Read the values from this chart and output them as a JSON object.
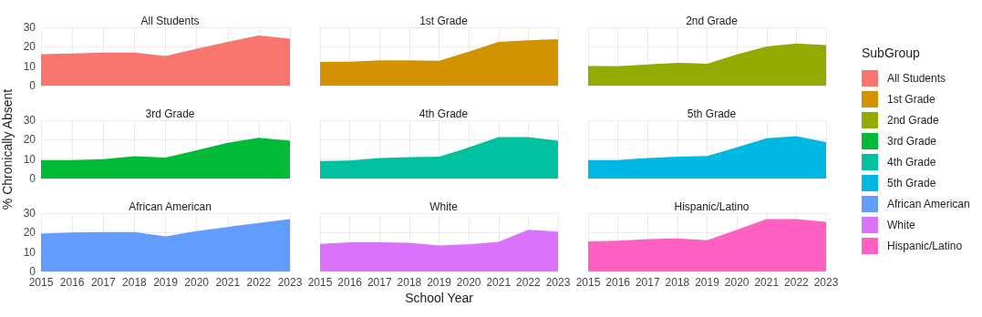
{
  "chart_data": [
    {
      "type": "area",
      "title": "All Students",
      "categories": [
        "2015",
        "2016",
        "2017",
        "2018",
        "2019",
        "2020",
        "2021",
        "2022",
        "2023"
      ],
      "ylim": [
        0,
        30
      ],
      "yticks": [
        0,
        10,
        20,
        30
      ],
      "grid": true,
      "tick_labels": "y",
      "legend": "right",
      "legend_title": "SubGroup",
      "series": [
        {
          "name": "All Students",
          "color": "#f8766d",
          "values": [
            16.2,
            16.5,
            17,
            17,
            15.2,
            19,
            22.5,
            25.8,
            24.1
          ]
        }
      ]
    },
    {
      "type": "area",
      "title": "1st Grade",
      "categories": [
        "2015",
        "2016",
        "2017",
        "2018",
        "2019",
        "2020",
        "2021",
        "2022",
        "2023"
      ],
      "ylim": [
        0,
        30
      ],
      "yticks": [
        0,
        10,
        20,
        30
      ],
      "grid": true,
      "tick_labels": false,
      "series": [
        {
          "name": "1st Grade",
          "color": "#d39200",
          "values": [
            12.2,
            12.3,
            13,
            13,
            12.8,
            17.5,
            22.5,
            23.3,
            23.9
          ]
        }
      ]
    },
    {
      "type": "area",
      "title": "2nd Grade",
      "categories": [
        "2015",
        "2016",
        "2017",
        "2018",
        "2019",
        "2020",
        "2021",
        "2022",
        "2023"
      ],
      "ylim": [
        0,
        30
      ],
      "yticks": [
        0,
        10,
        20,
        30
      ],
      "grid": true,
      "tick_labels": false,
      "series": [
        {
          "name": "2nd Grade",
          "color": "#93aa00",
          "values": [
            10.1,
            10,
            10.9,
            11.7,
            11.3,
            16,
            20.2,
            21.7,
            20.9
          ]
        }
      ]
    },
    {
      "type": "area",
      "title": "3rd Grade",
      "ylabel": "% Chronically Absent",
      "categories": [
        "2015",
        "2016",
        "2017",
        "2018",
        "2019",
        "2020",
        "2021",
        "2022",
        "2023"
      ],
      "ylim": [
        0,
        30
      ],
      "yticks": [
        0,
        10,
        20,
        30
      ],
      "grid": true,
      "tick_labels": "y",
      "series": [
        {
          "name": "3rd Grade",
          "color": "#00ba38",
          "values": [
            9.5,
            9.5,
            10,
            11.5,
            10.8,
            14.5,
            18.4,
            21,
            19.4
          ]
        }
      ]
    },
    {
      "type": "area",
      "title": "4th Grade",
      "categories": [
        "2015",
        "2016",
        "2017",
        "2018",
        "2019",
        "2020",
        "2021",
        "2022",
        "2023"
      ],
      "ylim": [
        0,
        30
      ],
      "yticks": [
        0,
        10,
        20,
        30
      ],
      "grid": true,
      "tick_labels": false,
      "series": [
        {
          "name": "4th Grade",
          "color": "#00c19f",
          "values": [
            9,
            9.3,
            10.6,
            11,
            11.3,
            16,
            21.3,
            21.3,
            19.4
          ]
        }
      ]
    },
    {
      "type": "area",
      "title": "5th Grade",
      "categories": [
        "2015",
        "2016",
        "2017",
        "2018",
        "2019",
        "2020",
        "2021",
        "2022",
        "2023"
      ],
      "ylim": [
        0,
        30
      ],
      "yticks": [
        0,
        10,
        20,
        30
      ],
      "grid": true,
      "tick_labels": false,
      "series": [
        {
          "name": "5th Grade",
          "color": "#00b9e3",
          "values": [
            9.5,
            9.5,
            10.5,
            11.3,
            11.6,
            16,
            20.8,
            21.8,
            18.7
          ]
        }
      ]
    },
    {
      "type": "area",
      "title": "African American",
      "categories": [
        "2015",
        "2016",
        "2017",
        "2018",
        "2019",
        "2020",
        "2021",
        "2022",
        "2023"
      ],
      "ylim": [
        0,
        30
      ],
      "yticks": [
        0,
        10,
        20,
        30
      ],
      "grid": true,
      "series": [
        {
          "name": "African American",
          "color": "#619cff",
          "values": [
            19.4,
            20,
            20.3,
            20.3,
            18.1,
            20.8,
            22.9,
            25,
            27
          ]
        }
      ]
    },
    {
      "type": "area",
      "title": "White",
      "xlabel": "School Year",
      "categories": [
        "2015",
        "2016",
        "2017",
        "2018",
        "2019",
        "2020",
        "2021",
        "2022",
        "2023"
      ],
      "ylim": [
        0,
        30
      ],
      "yticks": [
        0,
        10,
        20,
        30
      ],
      "grid": true,
      "tick_labels": "x",
      "series": [
        {
          "name": "White",
          "color": "#db72fb",
          "values": [
            14.2,
            15,
            15,
            14.8,
            13.4,
            14,
            15.2,
            21.5,
            20.5
          ]
        }
      ]
    },
    {
      "type": "area",
      "title": "Hispanic/Latino",
      "categories": [
        "2015",
        "2016",
        "2017",
        "2018",
        "2019",
        "2020",
        "2021",
        "2022",
        "2023"
      ],
      "ylim": [
        0,
        30
      ],
      "yticks": [
        0,
        10,
        20,
        30
      ],
      "grid": true,
      "tick_labels": "x",
      "series": [
        {
          "name": "Hispanic/Latino",
          "color": "#ff61c3",
          "values": [
            15.5,
            15.8,
            16.6,
            17,
            16.1,
            21.4,
            27,
            27,
            25.6
          ]
        }
      ]
    }
  ]
}
